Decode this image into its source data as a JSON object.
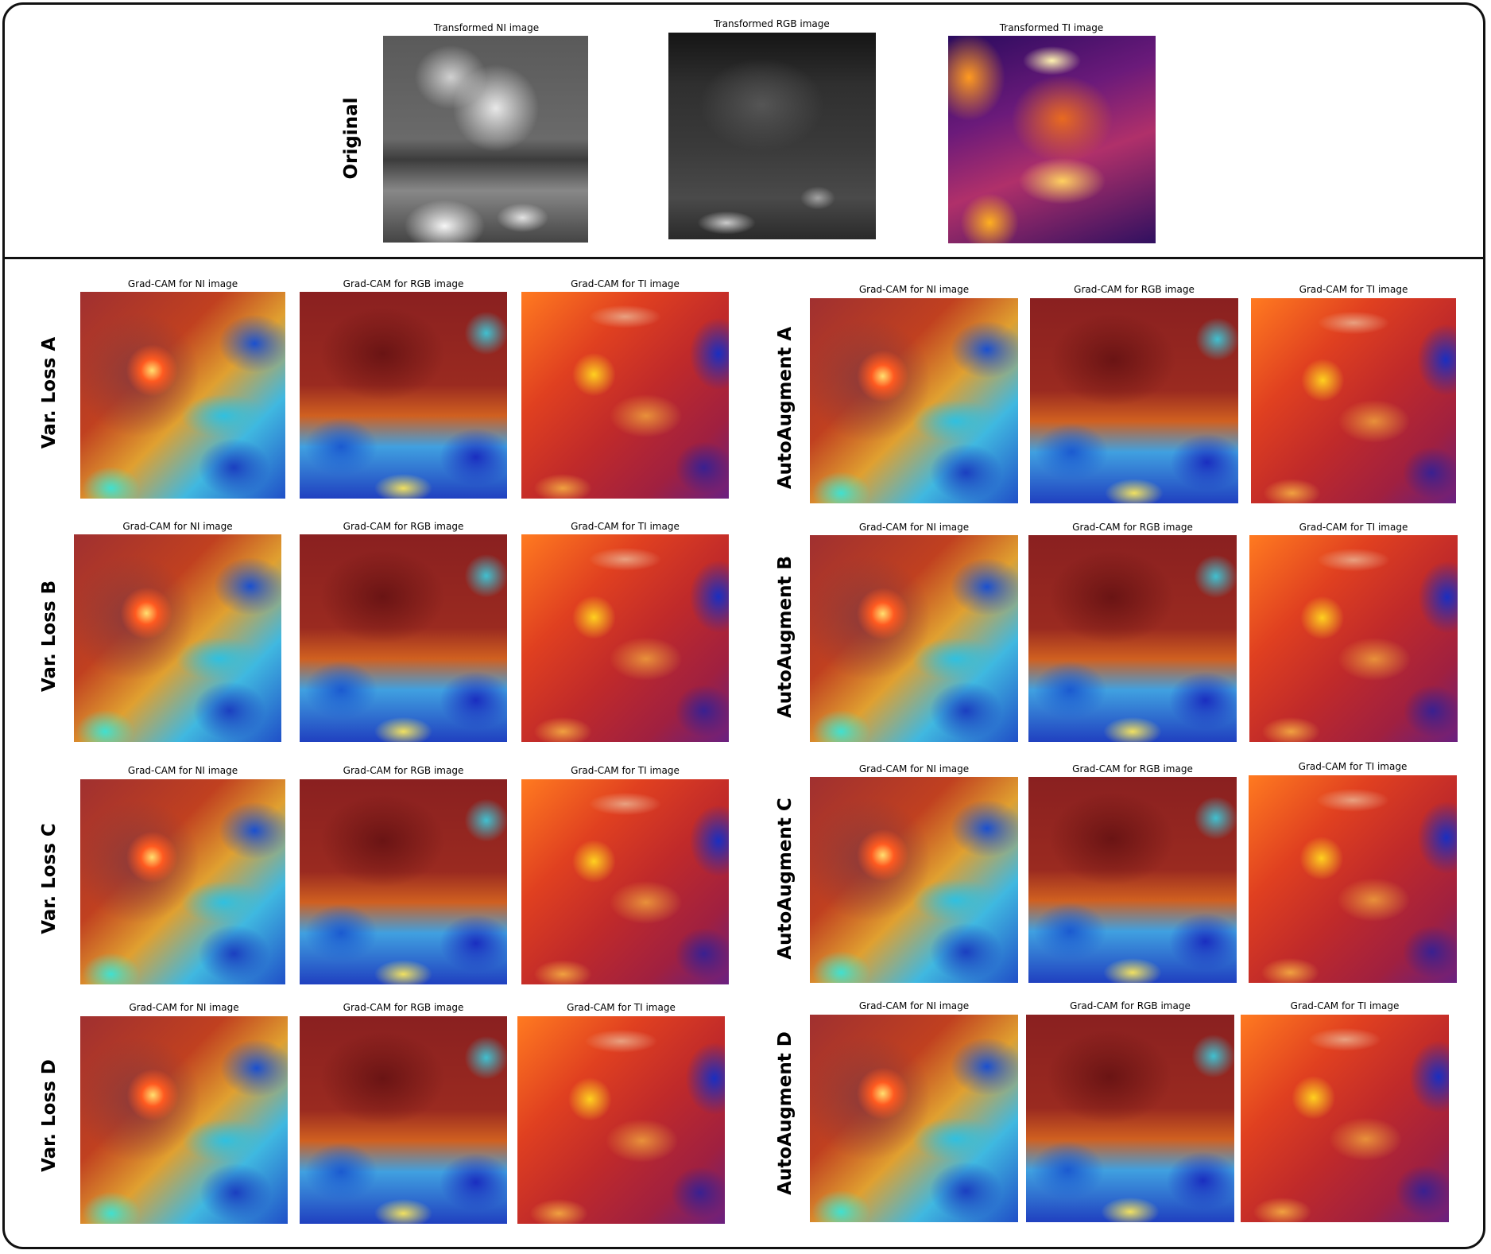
{
  "top": {
    "row_label": "Original",
    "captions": [
      "Transformed NI image",
      "Transformed RGB image",
      "Transformed TI image"
    ]
  },
  "caption_ni": "Grad-CAM for NI image",
  "caption_rgb": "Grad-CAM for RGB image",
  "caption_ti": "Grad-CAM for TI image",
  "left_rows": [
    "Var. Loss A",
    "Var. Loss B",
    "Var. Loss C",
    "Var. Loss D"
  ],
  "right_rows": [
    "AutoAugment A",
    "AutoAugment  B",
    "AutoAugment  C",
    "AutoAugment  D"
  ]
}
